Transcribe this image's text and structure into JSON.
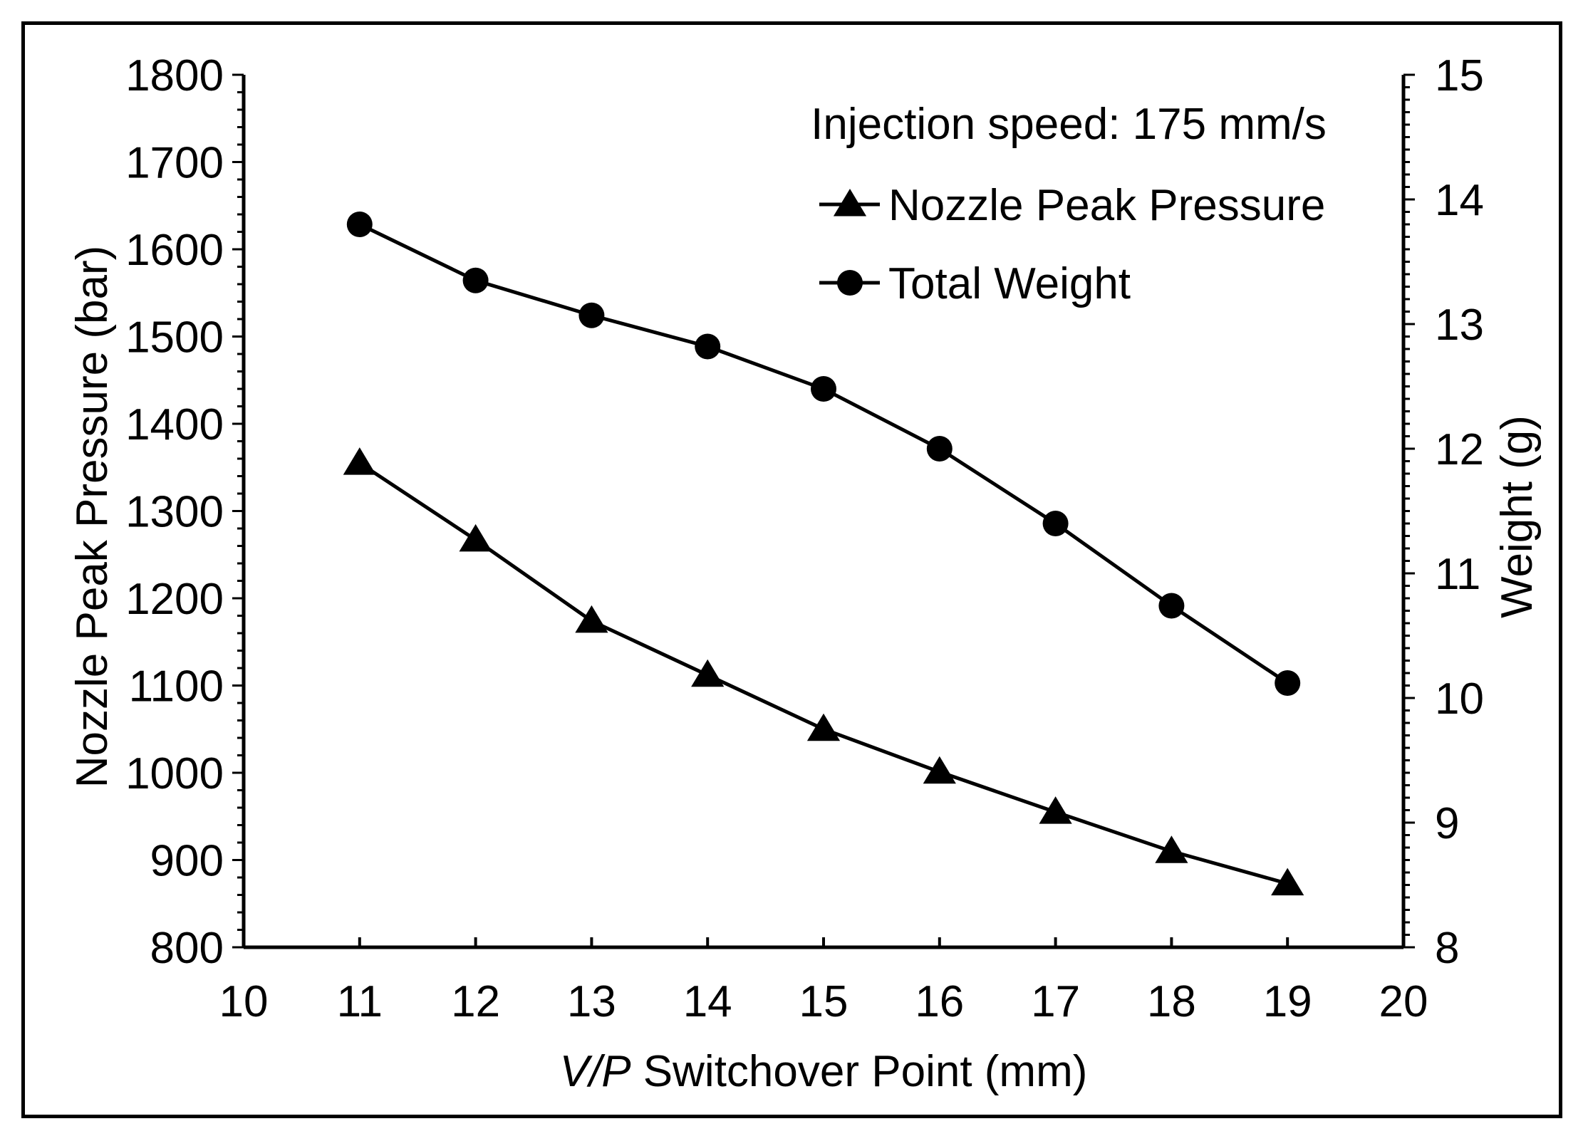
{
  "chart_data": {
    "type": "line",
    "annotation": "Injection speed: 175 mm/s",
    "x": [
      11,
      12,
      13,
      14,
      15,
      16,
      17,
      18,
      19
    ],
    "xlabel_italic": "V/P",
    "xlabel_rest": " Switchover Point (mm)",
    "xlim": [
      10,
      20
    ],
    "xticks": [
      10,
      11,
      12,
      13,
      14,
      15,
      16,
      17,
      18,
      19,
      20
    ],
    "ylabel": "Nozzle Peak Pressure (bar)",
    "ylim": [
      800,
      1800
    ],
    "yticks": [
      800,
      900,
      1000,
      1100,
      1200,
      1300,
      1400,
      1500,
      1600,
      1700,
      1800
    ],
    "y2label": "Weight (g)",
    "y2lim": [
      8,
      15
    ],
    "y2ticks": [
      8,
      9,
      10,
      11,
      12,
      13,
      14,
      15
    ],
    "legend_position": "top-right",
    "grid": false,
    "series": [
      {
        "name": "Nozzle Peak Pressure",
        "axis": "left",
        "marker": "triangle",
        "values": [
          1355,
          1267,
          1174,
          1112,
          1050,
          1001,
          955,
          910,
          873
        ]
      },
      {
        "name": "Total Weight",
        "axis": "right",
        "marker": "circle",
        "values": [
          13.8,
          13.35,
          13.07,
          12.82,
          12.48,
          12.0,
          11.4,
          10.74,
          10.12
        ]
      }
    ]
  }
}
